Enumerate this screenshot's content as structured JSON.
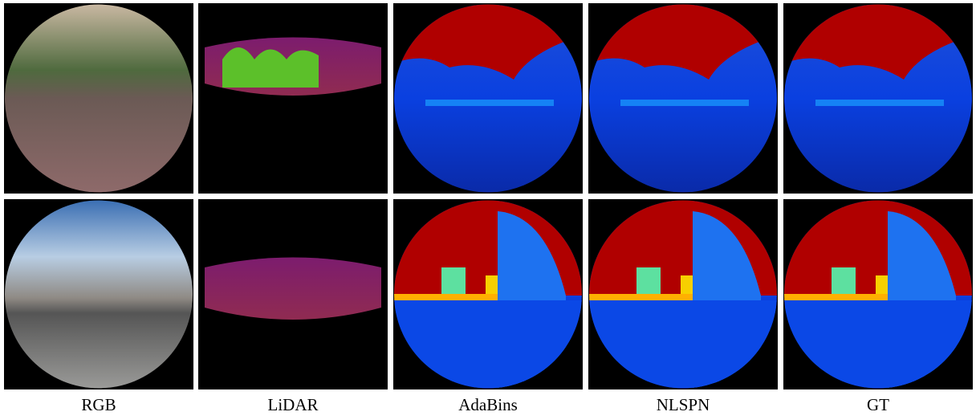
{
  "columns": [
    "RGB",
    "LiDAR",
    "AdaBins",
    "NLSPN",
    "GT"
  ]
}
